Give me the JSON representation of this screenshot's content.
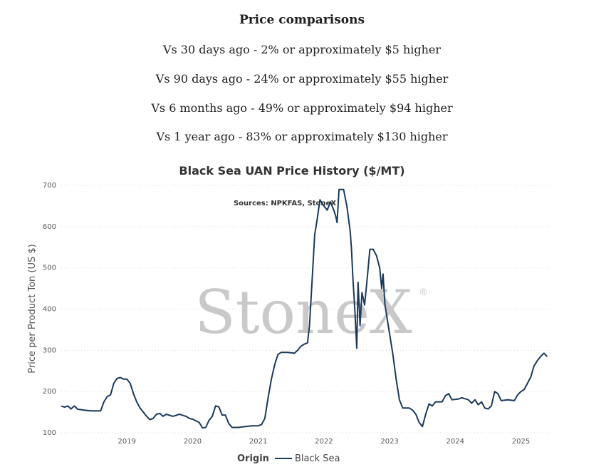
{
  "summary": {
    "heading": "Price comparisons",
    "lines": [
      "Vs 30 days ago - 2% or approximately $5 higher",
      "Vs 90 days ago - 24% or approximately $55 higher",
      "Vs 6 months ago - 49% or approximately $94 higher",
      "Vs 1 year ago - 83% or approximately $130 higher"
    ]
  },
  "chart_data": {
    "type": "line",
    "title": "Black Sea UAN Price History ($/MT)",
    "subtitle": "Sources: NPKFAS, StoneX",
    "watermark": "StoneX",
    "watermark_mark": "®",
    "ylabel": "Price per Product Ton (US $)",
    "xlabel": "",
    "ylim": [
      100,
      700
    ],
    "yticks": [
      100,
      200,
      300,
      400,
      500,
      600,
      700
    ],
    "xlim": [
      2018.0,
      2025.45
    ],
    "xticks": [
      2019,
      2020,
      2021,
      2022,
      2023,
      2024,
      2025
    ],
    "grid": true,
    "legend": {
      "title": "Origin",
      "placement": "bottom-center"
    },
    "series": [
      {
        "name": "Black Sea",
        "color": "#1b3a5c",
        "points": [
          [
            2018.0,
            165
          ],
          [
            2018.05,
            162
          ],
          [
            2018.1,
            165
          ],
          [
            2018.15,
            158
          ],
          [
            2018.2,
            165
          ],
          [
            2018.25,
            157
          ],
          [
            2018.35,
            155
          ],
          [
            2018.45,
            153
          ],
          [
            2018.6,
            153
          ],
          [
            2018.65,
            175
          ],
          [
            2018.7,
            188
          ],
          [
            2018.75,
            192
          ],
          [
            2018.8,
            220
          ],
          [
            2018.85,
            232
          ],
          [
            2018.9,
            234
          ],
          [
            2018.95,
            230
          ],
          [
            2019.0,
            230
          ],
          [
            2019.05,
            220
          ],
          [
            2019.1,
            195
          ],
          [
            2019.15,
            175
          ],
          [
            2019.2,
            160
          ],
          [
            2019.25,
            150
          ],
          [
            2019.3,
            140
          ],
          [
            2019.35,
            132
          ],
          [
            2019.4,
            135
          ],
          [
            2019.45,
            145
          ],
          [
            2019.5,
            147
          ],
          [
            2019.55,
            140
          ],
          [
            2019.6,
            145
          ],
          [
            2019.7,
            140
          ],
          [
            2019.8,
            145
          ],
          [
            2019.9,
            140
          ],
          [
            2019.95,
            135
          ],
          [
            2020.0,
            133
          ],
          [
            2020.1,
            125
          ],
          [
            2020.15,
            112
          ],
          [
            2020.2,
            113
          ],
          [
            2020.25,
            130
          ],
          [
            2020.3,
            140
          ],
          [
            2020.35,
            165
          ],
          [
            2020.4,
            163
          ],
          [
            2020.45,
            143
          ],
          [
            2020.5,
            143
          ],
          [
            2020.55,
            123
          ],
          [
            2020.6,
            113
          ],
          [
            2020.7,
            113
          ],
          [
            2020.8,
            115
          ],
          [
            2020.9,
            117
          ],
          [
            2021.0,
            117
          ],
          [
            2021.05,
            120
          ],
          [
            2021.1,
            135
          ],
          [
            2021.15,
            185
          ],
          [
            2021.2,
            230
          ],
          [
            2021.25,
            265
          ],
          [
            2021.3,
            290
          ],
          [
            2021.35,
            295
          ],
          [
            2021.45,
            295
          ],
          [
            2021.55,
            293
          ],
          [
            2021.6,
            300
          ],
          [
            2021.65,
            310
          ],
          [
            2021.7,
            315
          ],
          [
            2021.75,
            318
          ],
          [
            2021.78,
            360
          ],
          [
            2021.82,
            470
          ],
          [
            2021.86,
            580
          ],
          [
            2021.9,
            620
          ],
          [
            2021.94,
            665
          ],
          [
            2022.0,
            650
          ],
          [
            2022.05,
            640
          ],
          [
            2022.1,
            660
          ],
          [
            2022.15,
            640
          ],
          [
            2022.18,
            625
          ],
          [
            2022.2,
            610
          ],
          [
            2022.23,
            690
          ],
          [
            2022.3,
            690
          ],
          [
            2022.35,
            650
          ],
          [
            2022.4,
            590
          ],
          [
            2022.42,
            545
          ],
          [
            2022.44,
            480
          ],
          [
            2022.47,
            400
          ],
          [
            2022.5,
            305
          ],
          [
            2022.52,
            465
          ],
          [
            2022.55,
            360
          ],
          [
            2022.58,
            440
          ],
          [
            2022.62,
            410
          ],
          [
            2022.66,
            475
          ],
          [
            2022.7,
            545
          ],
          [
            2022.75,
            545
          ],
          [
            2022.8,
            530
          ],
          [
            2022.85,
            500
          ],
          [
            2022.88,
            450
          ],
          [
            2022.9,
            485
          ],
          [
            2022.93,
            410
          ],
          [
            2022.96,
            380
          ],
          [
            2023.0,
            340
          ],
          [
            2023.05,
            290
          ],
          [
            2023.1,
            230
          ],
          [
            2023.15,
            180
          ],
          [
            2023.2,
            160
          ],
          [
            2023.3,
            160
          ],
          [
            2023.35,
            155
          ],
          [
            2023.4,
            145
          ],
          [
            2023.45,
            125
          ],
          [
            2023.5,
            115
          ],
          [
            2023.55,
            145
          ],
          [
            2023.6,
            170
          ],
          [
            2023.65,
            165
          ],
          [
            2023.7,
            175
          ],
          [
            2023.8,
            175
          ],
          [
            2023.85,
            190
          ],
          [
            2023.9,
            195
          ],
          [
            2023.95,
            180
          ],
          [
            2024.05,
            182
          ],
          [
            2024.1,
            185
          ],
          [
            2024.2,
            180
          ],
          [
            2024.25,
            172
          ],
          [
            2024.3,
            180
          ],
          [
            2024.35,
            168
          ],
          [
            2024.4,
            175
          ],
          [
            2024.45,
            160
          ],
          [
            2024.5,
            158
          ],
          [
            2024.55,
            165
          ],
          [
            2024.6,
            200
          ],
          [
            2024.65,
            195
          ],
          [
            2024.7,
            178
          ],
          [
            2024.8,
            180
          ],
          [
            2024.9,
            178
          ],
          [
            2024.95,
            192
          ],
          [
            2025.0,
            200
          ],
          [
            2025.05,
            205
          ],
          [
            2025.1,
            220
          ],
          [
            2025.15,
            235
          ],
          [
            2025.2,
            262
          ],
          [
            2025.25,
            275
          ],
          [
            2025.3,
            285
          ],
          [
            2025.35,
            293
          ],
          [
            2025.4,
            285
          ]
        ]
      }
    ]
  }
}
